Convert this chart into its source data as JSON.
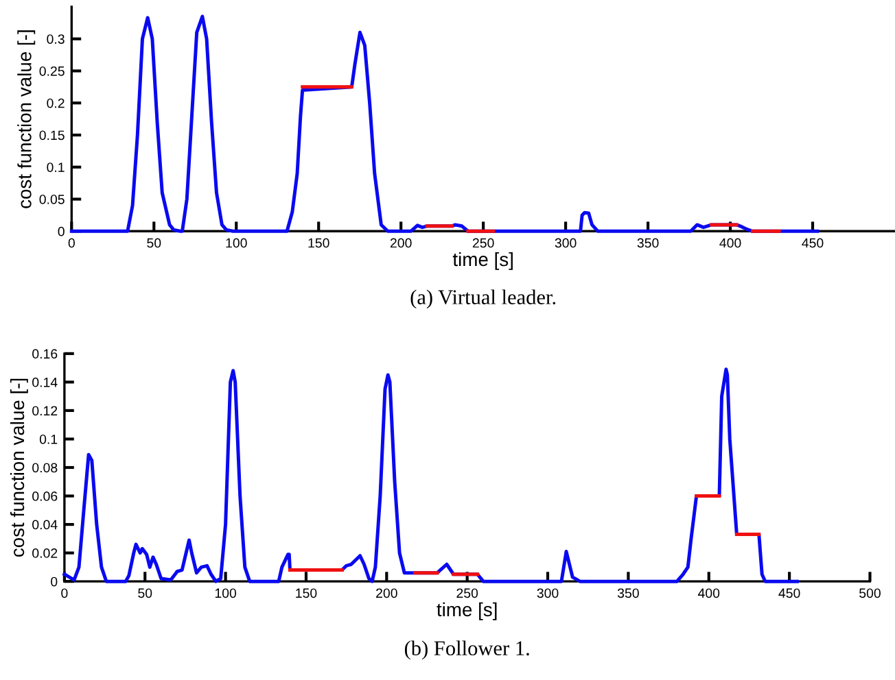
{
  "chart_data": [
    {
      "type": "line",
      "xlabel": "time [s]",
      "ylabel": "cost function value [-]",
      "xlim": [
        0,
        500
      ],
      "ylim": [
        0,
        0.35
      ],
      "xticks": [
        0,
        50,
        100,
        150,
        200,
        250,
        300,
        350,
        400,
        450
      ],
      "yticks": [
        0,
        0.05,
        0.1,
        0.15,
        0.2,
        0.25,
        0.3
      ],
      "grid": false,
      "annotations": [
        "(a) Virtual leader."
      ],
      "series": [
        {
          "color": "#0a0af0",
          "x": [
            0,
            34,
            37,
            40,
            43,
            46.2,
            49,
            52,
            55,
            59.5,
            62,
            66,
            67.2,
            70,
            73,
            76,
            79.4,
            82,
            85,
            88,
            91.3,
            94,
            98,
            130.8,
            134,
            137,
            139,
            140.2,
            170.1,
            172,
            175.1,
            178,
            181,
            184,
            188,
            192,
            206,
            210,
            213,
            215.8,
            231,
            233,
            237,
            240.7,
            256,
            309,
            310,
            311.5,
            314,
            316,
            319.5,
            376,
            379.8,
            383.7,
            388.6,
            403.8,
            406,
            410,
            413.5,
            429.6,
            452.8
          ],
          "values": [
            0,
            0,
            0.04,
            0.15,
            0.3,
            0.333,
            0.3,
            0.17,
            0.06,
            0.01,
            0.002,
            0,
            0,
            0.05,
            0.18,
            0.31,
            0.335,
            0.3,
            0.17,
            0.06,
            0.01,
            0.002,
            0,
            0,
            0.03,
            0.09,
            0.18,
            0.22,
            0.225,
            0.26,
            0.31,
            0.29,
            0.2,
            0.09,
            0.01,
            0,
            0,
            0.009,
            0.006,
            0.008,
            0.008,
            0.01,
            0.008,
            0,
            0,
            0,
            0.025,
            0.029,
            0.028,
            0.01,
            0,
            0,
            0.01,
            0.006,
            0.01,
            0.01,
            0.008,
            0.003,
            0,
            0,
            0
          ]
        },
        {
          "color": "#f01010",
          "x": [
            140.2,
            170.1,
            171,
            215.8,
            231,
            232,
            240.7,
            256,
            257,
            388.6,
            403.8,
            405,
            413.5,
            429.6
          ],
          "values": [
            0.225,
            0.225,
            null,
            0.008,
            0.008,
            null,
            0,
            0,
            null,
            0.01,
            0.01,
            null,
            0,
            0
          ]
        }
      ]
    },
    {
      "type": "line",
      "xlabel": "time [s]",
      "ylabel": "cost function value [-]",
      "xlim": [
        0,
        500
      ],
      "ylim": [
        0,
        0.16
      ],
      "xticks": [
        0,
        50,
        100,
        150,
        200,
        250,
        300,
        350,
        400,
        450,
        500
      ],
      "yticks": [
        0,
        0.02,
        0.04,
        0.06,
        0.08,
        0.1,
        0.12,
        0.14,
        0.16
      ],
      "grid": false,
      "annotations": [
        "(b) Follower 1."
      ],
      "series": [
        {
          "color": "#0a0af0",
          "x": [
            0,
            3,
            6,
            9,
            12,
            15,
            17,
            20,
            23,
            26,
            38,
            40,
            43,
            44.4,
            47,
            48.3,
            51,
            53,
            55,
            57,
            60,
            66,
            70,
            73,
            77.4,
            79,
            82,
            85,
            88.5,
            91,
            94,
            97,
            100,
            103,
            104.7,
            106,
            109,
            112,
            115,
            133,
            135,
            138.8,
            139.5,
            140,
            172.3,
            175,
            178,
            183.5,
            186,
            189,
            191,
            193,
            196,
            199,
            200.8,
            202,
            205,
            208,
            211,
            217.6,
            231.4,
            237.3,
            241.5,
            256.4,
            260,
            308.5,
            311.5,
            315.4,
            320,
            380.2,
            384,
            387,
            389,
            392.3,
            406.5,
            408,
            410.7,
            411.5,
            413,
            417.3,
            431.1,
            433,
            435,
            454.8
          ],
          "values": [
            0.005,
            0.003,
            0.001,
            0.01,
            0.05,
            0.089,
            0.085,
            0.04,
            0.01,
            0,
            0,
            0.004,
            0.02,
            0.026,
            0.02,
            0.023,
            0.019,
            0.01,
            0.017,
            0.012,
            0.002,
            0.001,
            0.007,
            0.008,
            0.029,
            0.02,
            0.006,
            0.01,
            0.011,
            0.005,
            0,
            0.002,
            0.04,
            0.14,
            0.148,
            0.14,
            0.06,
            0.01,
            0,
            0,
            0.01,
            0.019,
            0.019,
            0.008,
            0.008,
            0.011,
            0.012,
            0.018,
            0.012,
            0.002,
            0,
            0.01,
            0.06,
            0.135,
            0.145,
            0.14,
            0.07,
            0.02,
            0.006,
            0.006,
            0.006,
            0.012,
            0.005,
            0.005,
            0,
            0,
            0.021,
            0.003,
            0,
            0,
            0.005,
            0.01,
            0.03,
            0.06,
            0.06,
            0.13,
            0.149,
            0.145,
            0.1,
            0.033,
            0.033,
            0.005,
            0,
            0
          ]
        },
        {
          "color": "#f01010",
          "x": [
            140,
            172.3,
            173,
            217.6,
            231.4,
            232,
            241.5,
            256.4,
            257,
            392.3,
            406.5,
            407,
            417.3,
            431.1
          ],
          "values": [
            0.008,
            0.008,
            null,
            0.006,
            0.006,
            null,
            0.005,
            0.005,
            null,
            0.06,
            0.06,
            null,
            0.033,
            0.033
          ]
        }
      ]
    }
  ]
}
